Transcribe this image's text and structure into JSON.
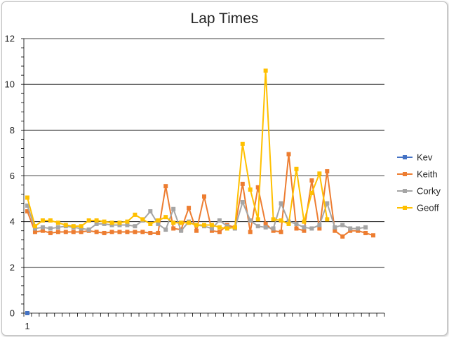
{
  "chart_data": {
    "type": "line",
    "title": "Lap Times",
    "xlabel": "",
    "ylabel": "",
    "ylim": [
      0,
      12
    ],
    "yticks": [
      0,
      2,
      4,
      6,
      8,
      10,
      12
    ],
    "xtick_label": "1",
    "grid": true,
    "legend_position": "right",
    "series": [
      {
        "name": "Kev",
        "color": "#4472C4",
        "values": [
          0
        ]
      },
      {
        "name": "Keith",
        "color": "#ED7D31",
        "values": [
          4.45,
          3.55,
          3.6,
          3.5,
          3.55,
          3.55,
          3.55,
          3.55,
          3.6,
          3.55,
          3.5,
          3.55,
          3.55,
          3.55,
          3.55,
          3.55,
          3.5,
          3.5,
          5.55,
          3.7,
          3.65,
          4.6,
          3.6,
          5.1,
          3.6,
          3.55,
          3.85,
          3.75,
          5.65,
          3.55,
          5.5,
          3.9,
          3.6,
          3.55,
          6.95,
          3.7,
          3.6,
          5.8,
          3.7,
          6.2,
          3.6,
          3.35,
          3.6,
          3.6,
          3.5,
          3.4
        ]
      },
      {
        "name": "Corky",
        "color": "#A5A5A5",
        "values": [
          4.7,
          3.7,
          3.75,
          3.7,
          3.75,
          3.8,
          3.75,
          3.7,
          3.65,
          3.9,
          3.9,
          3.85,
          3.85,
          3.85,
          3.8,
          4.05,
          4.45,
          3.9,
          3.65,
          4.55,
          3.6,
          4.0,
          3.85,
          3.8,
          3.7,
          4.05,
          3.8,
          3.7,
          4.85,
          4.05,
          3.8,
          3.75,
          3.7,
          4.8,
          4.0,
          3.9,
          3.75,
          3.7,
          3.85,
          4.8,
          3.75,
          3.85,
          3.7,
          3.7,
          3.75
        ]
      },
      {
        "name": "Geoff",
        "color": "#FFC000",
        "values": [
          5.05,
          3.8,
          4.05,
          4.05,
          3.95,
          3.85,
          3.8,
          3.8,
          4.05,
          4.05,
          4.0,
          3.95,
          3.95,
          4.0,
          4.3,
          4.1,
          3.9,
          4.05,
          4.2,
          3.95,
          3.95,
          3.95,
          3.85,
          3.85,
          3.85,
          3.75,
          3.7,
          3.75,
          7.4,
          5.4,
          4.1,
          10.6,
          4.1,
          4.05,
          3.9,
          6.3,
          4.0,
          5.25,
          6.1,
          4.1
        ]
      }
    ]
  }
}
